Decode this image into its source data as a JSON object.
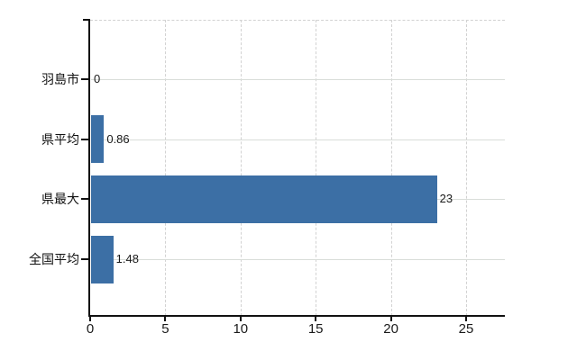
{
  "chart_data": {
    "type": "bar",
    "orientation": "horizontal",
    "title": "",
    "xlabel": "",
    "ylabel": "",
    "categories": [
      "羽島市",
      "県平均",
      "県最大",
      "全国平均"
    ],
    "values": [
      0,
      0.86,
      23,
      1.48
    ],
    "value_labels": [
      "0",
      "0.86",
      "23",
      "1.48"
    ],
    "x_ticks": [
      0,
      5,
      10,
      15,
      20,
      25
    ],
    "x_tick_labels": [
      "0",
      "5",
      "10",
      "15",
      "20",
      "25"
    ],
    "xlim": [
      0,
      27.6
    ],
    "grid": "on",
    "legend": "none",
    "colors": {
      "bar": "#3c6fa5",
      "axis": "#111111",
      "grid_horizontal": "#d9ddd9",
      "grid_vertical": "#d2d2d2",
      "text": "#1a1a1a",
      "background": "#ffffff"
    }
  }
}
